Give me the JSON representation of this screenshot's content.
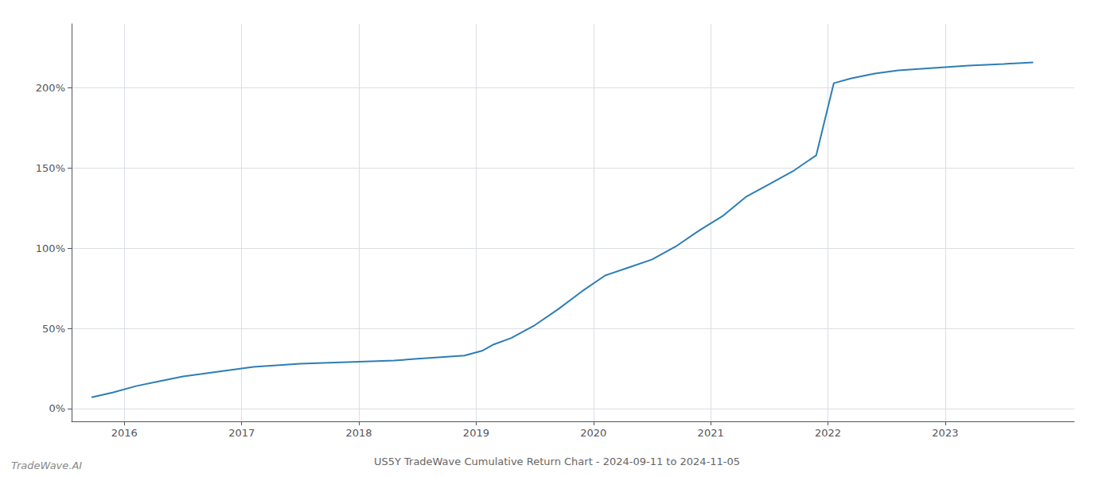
{
  "chart_data": {
    "type": "line",
    "title": "US5Y TradeWave Cumulative Return Chart - 2024-09-11 to 2024-11-05",
    "annotations": [
      "TradeWave.AI"
    ],
    "color": "#2d7eb5",
    "x": [
      2015.72,
      2015.9,
      2016.1,
      2016.3,
      2016.5,
      2016.7,
      2016.9,
      2017.1,
      2017.3,
      2017.5,
      2017.7,
      2017.9,
      2018.1,
      2018.3,
      2018.5,
      2018.7,
      2018.9,
      2019.05,
      2019.15,
      2019.3,
      2019.5,
      2019.7,
      2019.9,
      2020.1,
      2020.3,
      2020.5,
      2020.7,
      2020.9,
      2021.1,
      2021.3,
      2021.5,
      2021.7,
      2021.9,
      2022.05,
      2022.2,
      2022.4,
      2022.6,
      2022.8,
      2023.0,
      2023.2,
      2023.5,
      2023.75
    ],
    "values": [
      7,
      10,
      14,
      17,
      20,
      22,
      24,
      26,
      27,
      28,
      28.5,
      29,
      29.5,
      30,
      31,
      32,
      33,
      36,
      40,
      44,
      52,
      62,
      73,
      83,
      88,
      93,
      101,
      111,
      120,
      132,
      140,
      148,
      158,
      203,
      206,
      209,
      211,
      212,
      213,
      214,
      215,
      216
    ],
    "xlim": [
      2015.55,
      2024.1
    ],
    "xticks": [
      2016,
      2017,
      2018,
      2019,
      2020,
      2021,
      2022,
      2023
    ],
    "ylim": [
      -8,
      240
    ],
    "yticks": [
      {
        "value": 0,
        "label": "0%"
      },
      {
        "value": 50,
        "label": "50%"
      },
      {
        "value": 100,
        "label": "100%"
      },
      {
        "value": 150,
        "label": "150%"
      },
      {
        "value": 200,
        "label": "200%"
      }
    ],
    "grid": true
  }
}
